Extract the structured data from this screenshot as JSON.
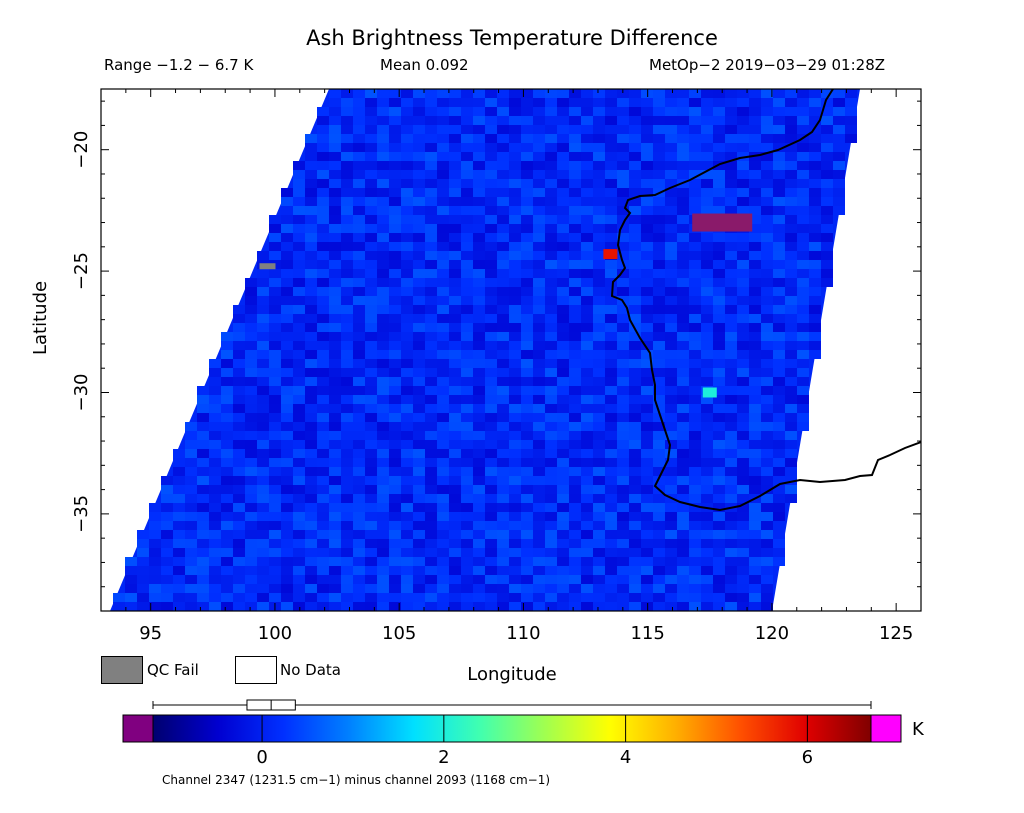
{
  "header": {
    "title": "Ash Brightness Temperature Difference",
    "range": "Range −1.2 − 6.7 K",
    "mean": "Mean 0.092",
    "satellite_time": "MetOp−2 2019−03−29 01:28Z"
  },
  "map": {
    "xlabel": "Longitude",
    "ylabel": "Latitude",
    "lon_range": [
      93,
      126
    ],
    "lat_range": [
      -39,
      -17.5
    ],
    "lon_ticks": [
      {
        "value": 95,
        "label": "95"
      },
      {
        "value": 100,
        "label": "100"
      },
      {
        "value": 105,
        "label": "105"
      },
      {
        "value": 110,
        "label": "110"
      },
      {
        "value": 115,
        "label": "115"
      },
      {
        "value": 120,
        "label": "120"
      },
      {
        "value": 125,
        "label": "125"
      }
    ],
    "lat_ticks": [
      {
        "value": -20,
        "label": "−20"
      },
      {
        "value": -25,
        "label": "−25"
      },
      {
        "value": -30,
        "label": "−30"
      },
      {
        "value": -35,
        "label": "−35"
      }
    ],
    "background_value_K": 0.1,
    "features": [
      {
        "name": "warm-anomaly",
        "lon": 118,
        "lat": -23,
        "value_K": 6.9
      },
      {
        "name": "warm-anomaly",
        "lon": 113.5,
        "lat": -24.3,
        "value_K": 5.8
      },
      {
        "name": "cool-patch",
        "lon": 117.5,
        "lat": -30,
        "value_K": 2.0
      },
      {
        "name": "qc-fail-pixel",
        "lon": 99.7,
        "lat": -24.8,
        "value_K": null
      }
    ]
  },
  "legend": {
    "qc_fail": "QC Fail",
    "no_data": "No Data",
    "qc_color": "#808080",
    "no_data_color": "#ffffff"
  },
  "colorbar": {
    "min": -1.2,
    "max": 6.7,
    "ticks": [
      {
        "value": 0,
        "label": "0"
      },
      {
        "value": 2,
        "label": "2"
      },
      {
        "value": 4,
        "label": "4"
      },
      {
        "value": 6,
        "label": "6"
      }
    ],
    "unit": "K",
    "box_range": [
      -0.1,
      0.3
    ],
    "box_median": 0.1,
    "under_color": "#800080",
    "over_color": "#ff00ff",
    "colors": [
      "#00006f",
      "#0000d0",
      "#0030ff",
      "#0080ff",
      "#00e0ff",
      "#40ffb0",
      "#a0ff50",
      "#ffff00",
      "#ffb000",
      "#ff5000",
      "#e00000",
      "#800000"
    ],
    "note": "Channel 2347 (1231.5 cm−1) minus channel 2093 (1168 cm−1)"
  }
}
